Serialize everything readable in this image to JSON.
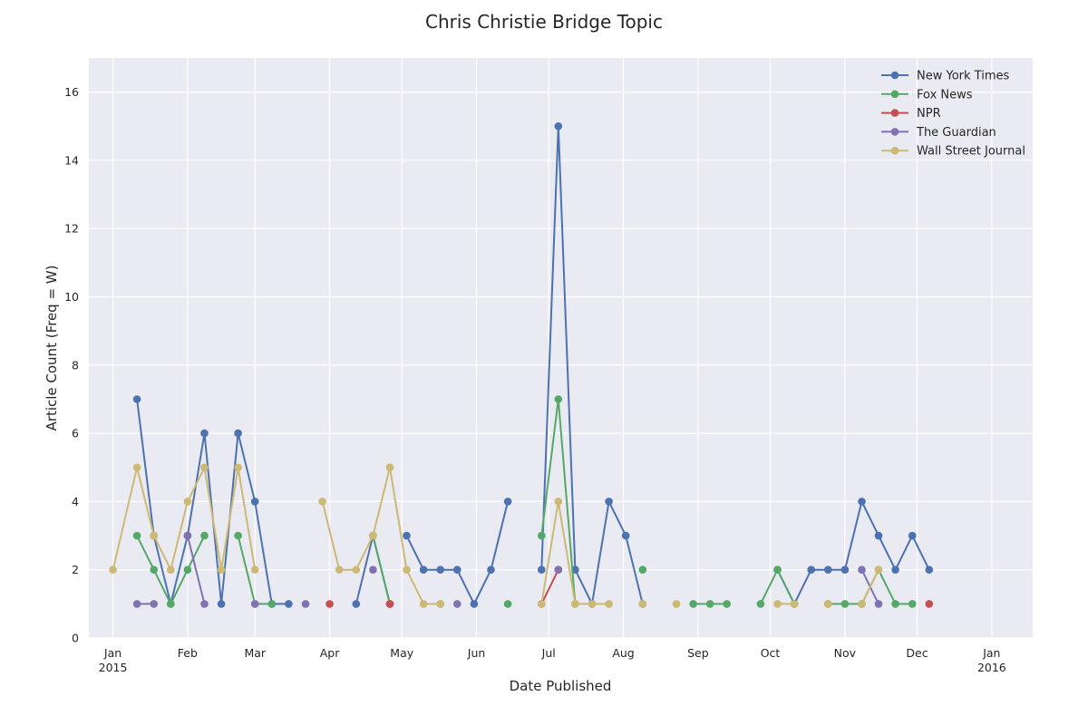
{
  "chart_data": {
    "type": "line",
    "title": "Chris Christie Bridge Topic",
    "xlabel": "Date Published",
    "ylabel": "Article Count (Freq = W)",
    "xlim": [
      "2014-12-22",
      "2016-01-18"
    ],
    "ylim": [
      0,
      17
    ],
    "yticks": [
      0,
      2,
      4,
      6,
      8,
      10,
      12,
      14,
      16
    ],
    "xticks": [
      {
        "date": "2015-01-01",
        "label": "Jan",
        "sublabel": "2015"
      },
      {
        "date": "2015-02-01",
        "label": "Feb",
        "sublabel": ""
      },
      {
        "date": "2015-03-01",
        "label": "Mar",
        "sublabel": ""
      },
      {
        "date": "2015-04-01",
        "label": "Apr",
        "sublabel": ""
      },
      {
        "date": "2015-05-01",
        "label": "May",
        "sublabel": ""
      },
      {
        "date": "2015-06-01",
        "label": "Jun",
        "sublabel": ""
      },
      {
        "date": "2015-07-01",
        "label": "Jul",
        "sublabel": ""
      },
      {
        "date": "2015-08-01",
        "label": "Aug",
        "sublabel": ""
      },
      {
        "date": "2015-09-01",
        "label": "Sep",
        "sublabel": ""
      },
      {
        "date": "2015-10-01",
        "label": "Oct",
        "sublabel": ""
      },
      {
        "date": "2015-11-01",
        "label": "Nov",
        "sublabel": ""
      },
      {
        "date": "2015-12-01",
        "label": "Dec",
        "sublabel": ""
      },
      {
        "date": "2016-01-01",
        "label": "Jan",
        "sublabel": "2016"
      }
    ],
    "grid": true,
    "legend_position": "top-right",
    "series": [
      {
        "name": "New York Times",
        "color": "#4c72b0",
        "segments": [
          [
            [
              "2015-01-11",
              7
            ],
            [
              "2015-01-18",
              3
            ],
            [
              "2015-01-25",
              1
            ],
            [
              "2015-02-01",
              3
            ],
            [
              "2015-02-08",
              6
            ],
            [
              "2015-02-15",
              1
            ],
            [
              "2015-02-22",
              6
            ],
            [
              "2015-03-01",
              4
            ],
            [
              "2015-03-08",
              1
            ],
            [
              "2015-03-15",
              1
            ]
          ],
          [
            [
              "2015-04-12",
              1
            ],
            [
              "2015-04-19",
              3
            ],
            [
              "2015-04-26",
              1
            ]
          ],
          [
            [
              "2015-05-03",
              3
            ],
            [
              "2015-05-10",
              2
            ],
            [
              "2015-05-17",
              2
            ],
            [
              "2015-05-24",
              2
            ],
            [
              "2015-05-31",
              1
            ],
            [
              "2015-06-07",
              2
            ],
            [
              "2015-06-14",
              4
            ]
          ],
          [
            [
              "2015-06-28",
              2
            ],
            [
              "2015-07-05",
              15
            ],
            [
              "2015-07-12",
              2
            ],
            [
              "2015-07-19",
              1
            ],
            [
              "2015-07-26",
              4
            ],
            [
              "2015-08-02",
              3
            ],
            [
              "2015-08-09",
              1
            ]
          ],
          [
            [
              "2015-10-04",
              2
            ],
            [
              "2015-10-11",
              1
            ],
            [
              "2015-10-18",
              2
            ],
            [
              "2015-10-25",
              2
            ],
            [
              "2015-11-01",
              2
            ],
            [
              "2015-11-08",
              4
            ],
            [
              "2015-11-15",
              3
            ],
            [
              "2015-11-22",
              2
            ],
            [
              "2015-11-29",
              3
            ],
            [
              "2015-12-06",
              2
            ]
          ]
        ]
      },
      {
        "name": "Fox News",
        "color": "#55a868",
        "segments": [
          [
            [
              "2015-01-11",
              3
            ],
            [
              "2015-01-18",
              2
            ],
            [
              "2015-01-25",
              1
            ],
            [
              "2015-02-01",
              2
            ],
            [
              "2015-02-08",
              3
            ]
          ],
          [
            [
              "2015-02-22",
              3
            ],
            [
              "2015-03-01",
              1
            ],
            [
              "2015-03-08",
              1
            ]
          ],
          [
            [
              "2015-04-19",
              3
            ],
            [
              "2015-04-26",
              1
            ]
          ],
          [
            [
              "2015-05-17",
              1
            ]
          ],
          [
            [
              "2015-06-14",
              1
            ]
          ],
          [
            [
              "2015-06-28",
              3
            ],
            [
              "2015-07-05",
              7
            ],
            [
              "2015-07-12",
              1
            ]
          ],
          [
            [
              "2015-08-09",
              2
            ]
          ],
          [
            [
              "2015-08-30",
              1
            ],
            [
              "2015-09-06",
              1
            ],
            [
              "2015-09-13",
              1
            ]
          ],
          [
            [
              "2015-09-27",
              1
            ],
            [
              "2015-10-04",
              2
            ],
            [
              "2015-10-11",
              1
            ]
          ],
          [
            [
              "2015-10-25",
              1
            ],
            [
              "2015-11-01",
              1
            ],
            [
              "2015-11-08",
              1
            ],
            [
              "2015-11-15",
              2
            ],
            [
              "2015-11-22",
              1
            ],
            [
              "2015-11-29",
              1
            ]
          ]
        ]
      },
      {
        "name": "NPR",
        "color": "#c44e52",
        "segments": [
          [
            [
              "2015-04-01",
              1
            ]
          ],
          [
            [
              "2015-04-26",
              1
            ]
          ],
          [
            [
              "2015-06-28",
              1
            ],
            [
              "2015-07-05",
              2
            ]
          ],
          [
            [
              "2015-12-06",
              1
            ]
          ]
        ]
      },
      {
        "name": "The Guardian",
        "color": "#8172b2",
        "segments": [
          [
            [
              "2015-01-11",
              1
            ],
            [
              "2015-01-18",
              1
            ]
          ],
          [
            [
              "2015-02-01",
              3
            ],
            [
              "2015-02-08",
              1
            ]
          ],
          [
            [
              "2015-03-01",
              1
            ]
          ],
          [
            [
              "2015-03-22",
              1
            ]
          ],
          [
            [
              "2015-04-19",
              2
            ]
          ],
          [
            [
              "2015-05-24",
              1
            ]
          ],
          [
            [
              "2015-07-05",
              2
            ]
          ],
          [
            [
              "2015-11-08",
              2
            ],
            [
              "2015-11-15",
              1
            ]
          ]
        ]
      },
      {
        "name": "Wall Street Journal",
        "color": "#ccb974",
        "segments": [
          [
            [
              "2015-01-01",
              2
            ],
            [
              "2015-01-11",
              5
            ],
            [
              "2015-01-18",
              3
            ],
            [
              "2015-01-25",
              2
            ],
            [
              "2015-02-01",
              4
            ],
            [
              "2015-02-08",
              5
            ],
            [
              "2015-02-15",
              2
            ],
            [
              "2015-02-22",
              5
            ],
            [
              "2015-03-01",
              2
            ]
          ],
          [
            [
              "2015-03-29",
              4
            ],
            [
              "2015-04-05",
              2
            ],
            [
              "2015-04-12",
              2
            ],
            [
              "2015-04-19",
              3
            ],
            [
              "2015-04-26",
              5
            ],
            [
              "2015-05-03",
              2
            ],
            [
              "2015-05-10",
              1
            ],
            [
              "2015-05-17",
              1
            ]
          ],
          [
            [
              "2015-06-28",
              1
            ],
            [
              "2015-07-05",
              4
            ],
            [
              "2015-07-12",
              1
            ],
            [
              "2015-07-19",
              1
            ],
            [
              "2015-07-26",
              1
            ]
          ],
          [
            [
              "2015-08-09",
              1
            ]
          ],
          [
            [
              "2015-08-23",
              1
            ]
          ],
          [
            [
              "2015-10-04",
              1
            ],
            [
              "2015-10-11",
              1
            ]
          ],
          [
            [
              "2015-10-25",
              1
            ]
          ],
          [
            [
              "2015-11-08",
              1
            ],
            [
              "2015-11-15",
              2
            ]
          ]
        ]
      }
    ]
  }
}
